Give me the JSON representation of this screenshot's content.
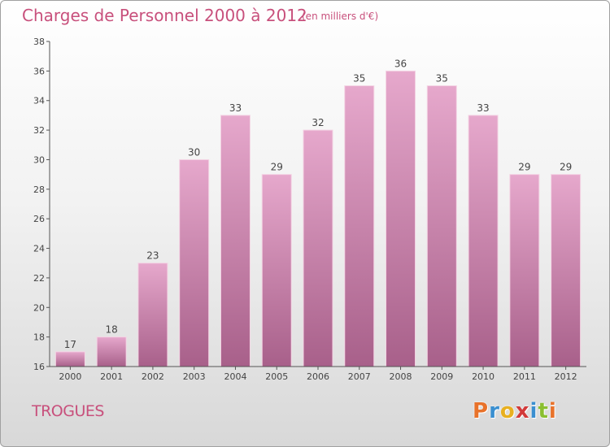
{
  "header": {
    "title": "Charges de Personnel 2000 à 2012",
    "subtitle": "(en milliers d'€)"
  },
  "footer": {
    "commune": "TROGUES",
    "brand": [
      "P",
      "r",
      "o",
      "x",
      "i",
      "t",
      "i"
    ],
    "brand_colors": [
      "#e8722a",
      "#3a8fd0",
      "#e8b020",
      "#d23a3a",
      "#3a8fd0",
      "#8abf30",
      "#e8722a"
    ]
  },
  "colors": {
    "bar_top": "#e6a8cc",
    "bar_bottom": "#a8608a",
    "axis": "#555555",
    "title": "#c8507c"
  },
  "chart_data": {
    "type": "bar",
    "title": "Charges de Personnel 2000 à 2012",
    "subtitle": "(en milliers d'€)",
    "xlabel": "",
    "ylabel": "",
    "categories": [
      "2000",
      "2001",
      "2002",
      "2003",
      "2004",
      "2005",
      "2006",
      "2007",
      "2008",
      "2009",
      "2010",
      "2011",
      "2012"
    ],
    "values": [
      17,
      18,
      23,
      30,
      33,
      29,
      32,
      35,
      36,
      35,
      33,
      29,
      29
    ],
    "ylim": [
      16,
      38
    ],
    "yticks": [
      16,
      18,
      20,
      22,
      24,
      26,
      28,
      30,
      32,
      34,
      36,
      38
    ],
    "grid": false,
    "legend": "none"
  }
}
